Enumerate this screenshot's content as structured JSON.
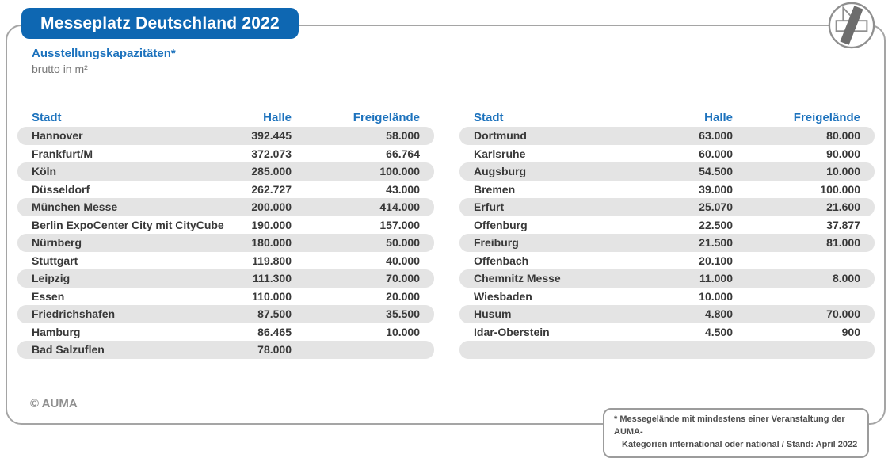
{
  "header": {
    "title": "Messeplatz Deutschland 2022"
  },
  "subtitle": {
    "line1": "Ausstellungskapazitäten*",
    "line2": "brutto in m²"
  },
  "columns": {
    "city": "Stadt",
    "hall": "Halle",
    "open_air": "Freigelände"
  },
  "tables": {
    "left": [
      {
        "city": "Hannover",
        "hall": "392.445",
        "open_air": "58.000"
      },
      {
        "city": "Frankfurt/M",
        "hall": "372.073",
        "open_air": "66.764"
      },
      {
        "city": "Köln",
        "hall": "285.000",
        "open_air": "100.000"
      },
      {
        "city": "Düsseldorf",
        "hall": "262.727",
        "open_air": "43.000"
      },
      {
        "city": "München Messe",
        "hall": "200.000",
        "open_air": "414.000"
      },
      {
        "city": "Berlin ExpoCenter City mit CityCube",
        "hall": "190.000",
        "open_air": "157.000"
      },
      {
        "city": "Nürnberg",
        "hall": "180.000",
        "open_air": "50.000"
      },
      {
        "city": "Stuttgart",
        "hall": "119.800",
        "open_air": "40.000"
      },
      {
        "city": "Leipzig",
        "hall": "111.300",
        "open_air": "70.000"
      },
      {
        "city": "Essen",
        "hall": "110.000",
        "open_air": "20.000"
      },
      {
        "city": "Friedrichshafen",
        "hall": "87.500",
        "open_air": "35.500"
      },
      {
        "city": "Hamburg",
        "hall": "86.465",
        "open_air": "10.000"
      },
      {
        "city": "Bad Salzuflen",
        "hall": "78.000",
        "open_air": ""
      }
    ],
    "right": [
      {
        "city": "Dortmund",
        "hall": "63.000",
        "open_air": "80.000"
      },
      {
        "city": "Karlsruhe",
        "hall": "60.000",
        "open_air": "90.000"
      },
      {
        "city": "Augsburg",
        "hall": "54.500",
        "open_air": "10.000"
      },
      {
        "city": "Bremen",
        "hall": "39.000",
        "open_air": "100.000"
      },
      {
        "city": "Erfurt",
        "hall": "25.070",
        "open_air": "21.600"
      },
      {
        "city": "Offenburg",
        "hall": "22.500",
        "open_air": "37.877"
      },
      {
        "city": "Freiburg",
        "hall": "21.500",
        "open_air": "81.000"
      },
      {
        "city": "Offenbach",
        "hall": "20.100",
        "open_air": ""
      },
      {
        "city": "Chemnitz Messe",
        "hall": "11.000",
        "open_air": "8.000"
      },
      {
        "city": "Wiesbaden",
        "hall": "10.000",
        "open_air": ""
      },
      {
        "city": "Husum",
        "hall": "4.800",
        "open_air": "70.000"
      },
      {
        "city": "Idar-Oberstein",
        "hall": "4.500",
        "open_air": "900"
      },
      {
        "city": "",
        "hall": "",
        "open_air": ""
      }
    ]
  },
  "footer": {
    "copyright": "© AUMA",
    "footnote_line1": "* Messegelände mit mindestens einer Veranstaltung der AUMA-",
    "footnote_line2": "Kategorien international oder national / Stand: April 2022"
  },
  "icons": {
    "logo": "auma-logo"
  },
  "colors": {
    "accent-blue": "#0e67b2",
    "label-blue": "#1c72bd",
    "row-shade": "#e4e4e4",
    "text-dark": "#383838",
    "frame-gray": "#a5a5a5",
    "muted-gray": "#8f8f8f",
    "logo-dark": "#6d6d6d"
  },
  "chart_data": {
    "type": "table",
    "title": "Messeplatz Deutschland 2022",
    "subtitle": "Ausstellungskapazitäten* brutto in m²",
    "columns": [
      "Stadt",
      "Halle",
      "Freigelände"
    ],
    "rows": [
      [
        "Hannover",
        392445,
        58000
      ],
      [
        "Frankfurt/M",
        372073,
        66764
      ],
      [
        "Köln",
        285000,
        100000
      ],
      [
        "Düsseldorf",
        262727,
        43000
      ],
      [
        "München Messe",
        200000,
        414000
      ],
      [
        "Berlin ExpoCenter City mit CityCube",
        190000,
        157000
      ],
      [
        "Nürnberg",
        180000,
        50000
      ],
      [
        "Stuttgart",
        119800,
        40000
      ],
      [
        "Leipzig",
        111300,
        70000
      ],
      [
        "Essen",
        110000,
        20000
      ],
      [
        "Friedrichshafen",
        87500,
        35500
      ],
      [
        "Hamburg",
        86465,
        10000
      ],
      [
        "Bad Salzuflen",
        78000,
        null
      ],
      [
        "Dortmund",
        63000,
        80000
      ],
      [
        "Karlsruhe",
        60000,
        90000
      ],
      [
        "Augsburg",
        54500,
        10000
      ],
      [
        "Bremen",
        39000,
        100000
      ],
      [
        "Erfurt",
        25070,
        21600
      ],
      [
        "Offenburg",
        22500,
        37877
      ],
      [
        "Freiburg",
        21500,
        81000
      ],
      [
        "Offenbach",
        20100,
        null
      ],
      [
        "Chemnitz Messe",
        11000,
        8000
      ],
      [
        "Wiesbaden",
        10000,
        null
      ],
      [
        "Husum",
        4800,
        70000
      ],
      [
        "Idar-Oberstein",
        4500,
        900
      ]
    ],
    "footnote": "* Messegelände mit mindestens einer Veranstaltung der AUMA-Kategorien international oder national / Stand: April 2022",
    "source": "© AUMA",
    "legend_position": "none",
    "grid": false
  }
}
